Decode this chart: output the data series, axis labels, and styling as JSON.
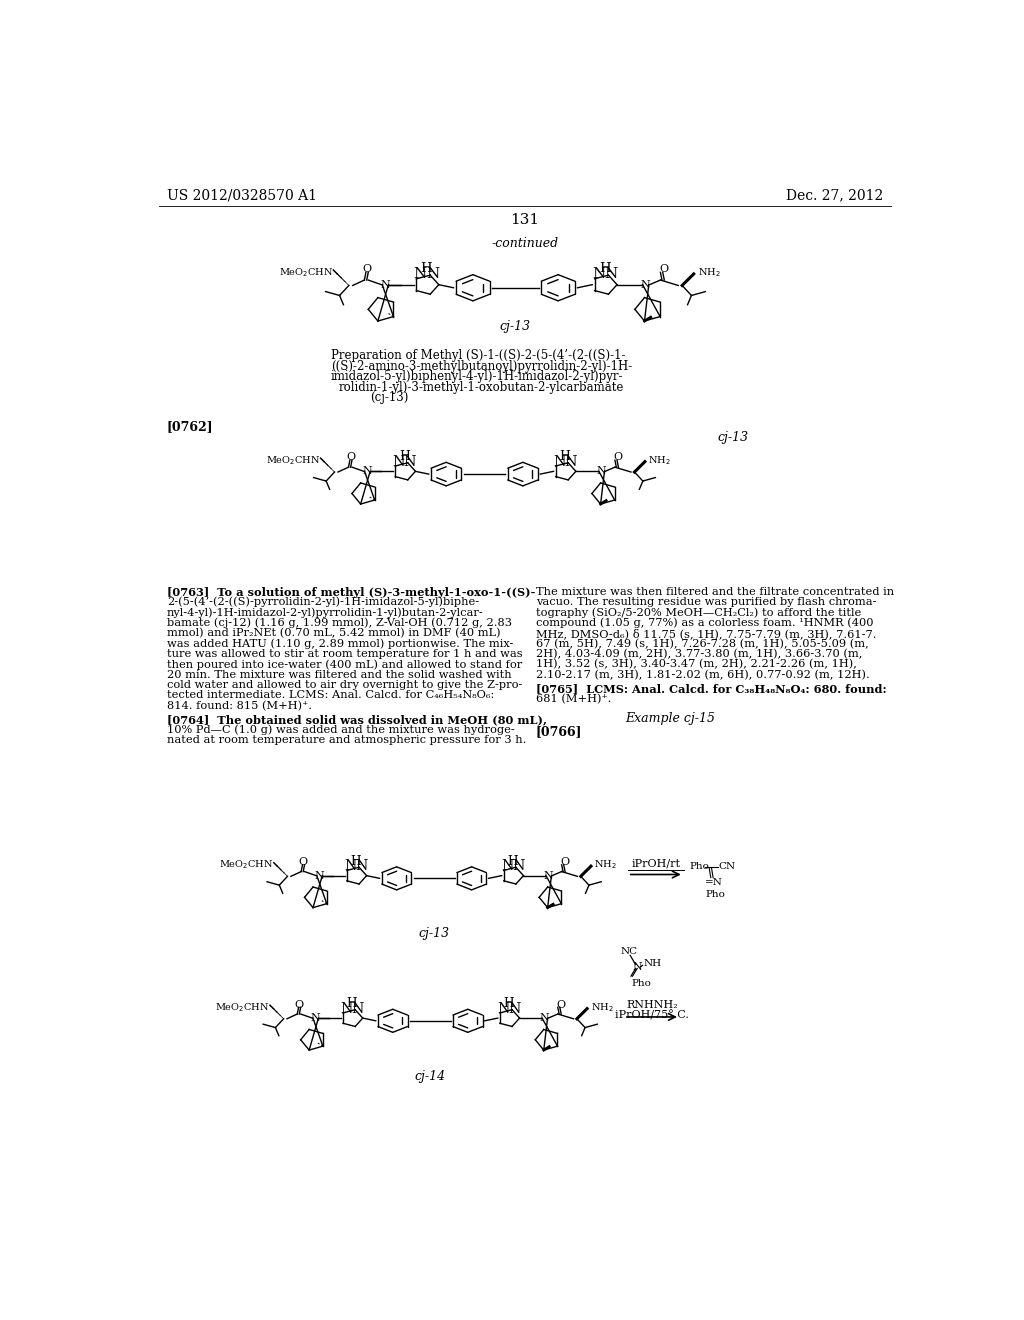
{
  "background_color": "#ffffff",
  "header_left": "US 2012/0328570 A1",
  "header_right": "Dec. 27, 2012",
  "page_number": "131",
  "continued_label": "-continued",
  "title_lines": [
    "Preparation of Methyl (S)-1-((S)-2-(5-(4’-(2-((S)-1-",
    "((S)-2-amino-3-methylbutanoyl)pyrrolidin-2-yl)-1H-",
    "imidazol-5-yl)biphenyl-4-yl)-1H-imidazol-2-yl)pyr-",
    "rolidin-1-yl)-3-methyl-1-oxobutan-2-ylcarbamate",
    "(cj-13)"
  ],
  "p763_left": [
    "[0763]  To a solution of methyl (S)-3-methyl-1-oxo-1-((S)-",
    "2-(5-(4’-(2-((S)-pyrrolidin-2-yl)-1H-imidazol-5-yl)biphe-",
    "nyl-4-yl)-1H-imidazol-2-yl)pyrrolidin-1-yl)butan-2-ylcar-",
    "bamate (cj-12) (1.16 g, 1.99 mmol), Z-Val-OH (0.712 g, 2.83",
    "mmol) and iPr₂NEt (0.70 mL, 5.42 mmol) in DMF (40 mL)",
    "was added HATU (1.10 g, 2.89 mmol) portionwise. The mix-",
    "ture was allowed to stir at room temperature for 1 h and was",
    "then poured into ice-water (400 mL) and allowed to stand for",
    "20 min. The mixture was filtered and the solid washed with",
    "cold water and allowed to air dry overnight to give the Z-pro-",
    "tected intermediate. LCMS: Anal. Calcd. for C₄₆H₅₄N₈O₆:",
    "814. found: 815 (M+H)⁺."
  ],
  "p764_left": [
    "[0764]  The obtained solid was dissolved in MeOH (80 mL),",
    "10% Pd—C (1.0 g) was added and the mixture was hydroge-",
    "nated at room temperature and atmospheric pressure for 3 h."
  ],
  "p763_right": [
    "The mixture was then filtered and the filtrate concentrated in",
    "vacuo. The resulting residue was purified by flash chroma-",
    "tography (SiO₂/5-20% MeOH—CH₂Cl₂) to afford the title",
    "compound (1.05 g, 77%) as a colorless foam. ¹HNMR (400",
    "MHz, DMSO-d₆) δ 11.75 (s, 1H), 7.75-7.79 (m, 3H), 7.61-7.",
    "67 (m, 5H), 7.49 (s, 1H), 7.26-7.28 (m, 1H), 5.05-5.09 (m,",
    "2H), 4.03-4.09 (m, 2H), 3.77-3.80 (m, 1H), 3.66-3.70 (m,",
    "1H), 3.52 (s, 3H), 3.40-3.47 (m, 2H), 2.21-2.26 (m, 1H),",
    "2.10-2.17 (m, 3H), 1.81-2.02 (m, 6H), 0.77-0.92 (m, 12H)."
  ],
  "p765_right": [
    "[0765]  LCMS: Anal. Calcd. for C₃₈H₄₈N₈O₄: 680. found:",
    "681 (M+H)⁺."
  ],
  "example_label": "Example cj-15",
  "p766_label": "[0766]",
  "arrow1_label": "iPrOH/rt",
  "arrow2_label1": "RNHNH₂",
  "arrow2_label2": "iPrOH/75° C."
}
